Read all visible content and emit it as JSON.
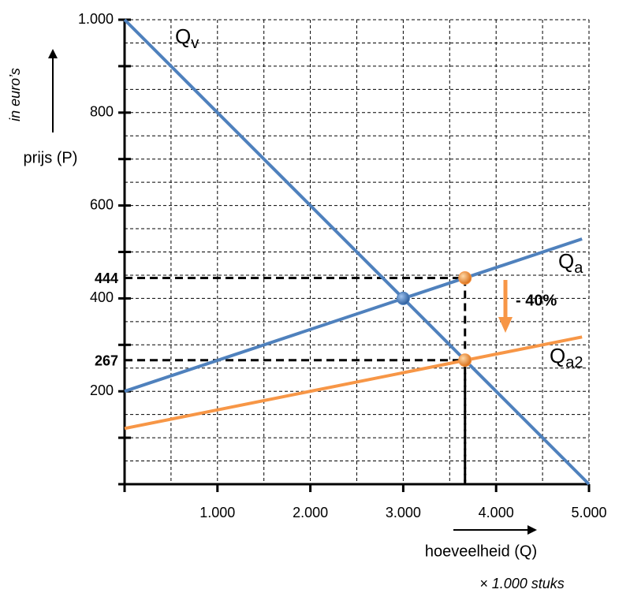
{
  "chart_data": {
    "type": "line",
    "xlim": [
      0,
      5000
    ],
    "ylim": [
      0,
      1000
    ],
    "xticks": [
      {
        "value": 1000,
        "label": "1.000"
      },
      {
        "value": 2000,
        "label": "2.000"
      },
      {
        "value": 3000,
        "label": "3.000"
      },
      {
        "value": 4000,
        "label": "4.000"
      },
      {
        "value": 5000,
        "label": "5.000"
      }
    ],
    "yticks": [
      200,
      400,
      600,
      800,
      {
        "value": 1000,
        "label": "1.000"
      }
    ],
    "yticks_minor": [
      100,
      300,
      500,
      700,
      900
    ],
    "grid": true,
    "xgrid": [
      500,
      1000,
      1500,
      2000,
      2500,
      3000,
      3500,
      4000,
      4500,
      5000
    ],
    "ygrid": [
      50,
      100,
      150,
      200,
      250,
      300,
      350,
      400,
      450,
      500,
      550,
      600,
      650,
      700,
      750,
      800,
      850,
      900,
      950,
      1000
    ],
    "x_label": "hoeveelheid (Q)",
    "y_label": "prijs (P)",
    "y_unit": "in euro’s",
    "x_unit": "× 1.000 stuks",
    "series": [
      {
        "name": "Qv",
        "color": "#4f81bd",
        "x": [
          0,
          5000
        ],
        "values": [
          1000,
          0
        ]
      },
      {
        "name": "Qa",
        "color": "#4f81bd",
        "x": [
          0,
          4925
        ],
        "values": [
          200,
          528
        ]
      },
      {
        "name": "Qa2",
        "color": "#f79646",
        "x": [
          0,
          4925
        ],
        "values": [
          120,
          317
        ]
      }
    ],
    "points": {
      "x": [
        3000,
        3665,
        3665
      ],
      "values": [
        400,
        444,
        267
      ],
      "colors": [
        "#4f81bd",
        "#f79646",
        "#f79646"
      ],
      "value_labels": [
        null,
        "444",
        "267"
      ],
      "label_color": "#c00000"
    },
    "annotation": {
      "text": "- 40%",
      "color": "#f79646"
    }
  }
}
